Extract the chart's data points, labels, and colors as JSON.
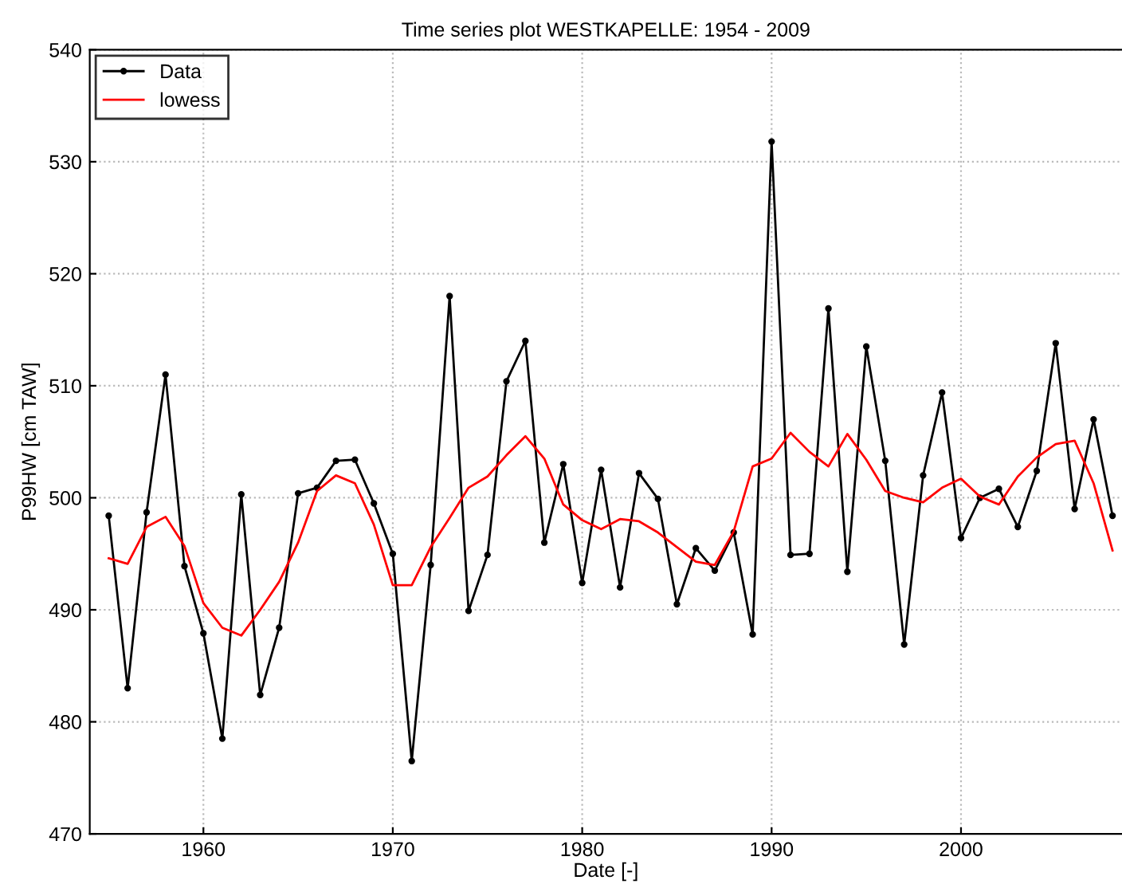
{
  "chart_data": {
    "type": "line",
    "title": "Time series plot WESTKAPELLE: 1954 - 2009",
    "xlabel": "Date [-]",
    "ylabel": "P99HW [cm TAW]",
    "x": [
      1955,
      1956,
      1957,
      1958,
      1959,
      1960,
      1961,
      1962,
      1963,
      1964,
      1965,
      1966,
      1967,
      1968,
      1969,
      1970,
      1971,
      1972,
      1973,
      1974,
      1975,
      1976,
      1977,
      1978,
      1979,
      1980,
      1981,
      1982,
      1983,
      1984,
      1985,
      1986,
      1987,
      1988,
      1989,
      1990,
      1991,
      1992,
      1993,
      1994,
      1995,
      1996,
      1997,
      1998,
      1999,
      2000,
      2001,
      2002,
      2003,
      2004,
      2005,
      2006,
      2007,
      2008
    ],
    "series": [
      {
        "name": "Data",
        "color": "#000000",
        "marker": "circle",
        "values": [
          498.4,
          483.0,
          498.7,
          511.0,
          493.9,
          487.9,
          478.5,
          500.3,
          482.4,
          488.4,
          500.4,
          500.9,
          503.3,
          503.4,
          499.5,
          495.0,
          476.5,
          494.0,
          518.0,
          489.9,
          494.9,
          510.4,
          514.0,
          496.0,
          503.0,
          492.4,
          502.5,
          492.0,
          502.2,
          499.9,
          490.5,
          495.5,
          493.5,
          496.9,
          487.8,
          531.8,
          494.9,
          495.0,
          516.9,
          493.4,
          513.5,
          503.3,
          486.9,
          502.0,
          509.4,
          496.4,
          500.0,
          500.8,
          497.4,
          502.4,
          513.8,
          499.0,
          507.0,
          498.4
        ]
      },
      {
        "name": "lowess",
        "color": "#ff0000",
        "marker": "none",
        "values": [
          494.6,
          494.1,
          497.4,
          498.3,
          495.7,
          490.6,
          488.4,
          487.7,
          490.0,
          492.5,
          496.0,
          500.6,
          502.0,
          501.3,
          497.6,
          492.2,
          492.2,
          495.6,
          498.2,
          500.9,
          501.9,
          503.8,
          505.5,
          503.5,
          499.4,
          498.0,
          497.2,
          498.1,
          497.9,
          496.9,
          495.6,
          494.3,
          494.0,
          497.0,
          502.8,
          503.5,
          505.8,
          504.1,
          502.8,
          505.7,
          503.4,
          500.6,
          500.0,
          499.6,
          500.9,
          501.7,
          500.1,
          499.4,
          501.9,
          503.6,
          504.8,
          505.1,
          501.3,
          495.3
        ]
      }
    ],
    "xlim": [
      1954,
      2008.5
    ],
    "xticks": [
      1960,
      1970,
      1980,
      1990,
      2000
    ],
    "ylim": [
      470,
      540
    ],
    "yticks": [
      470,
      480,
      490,
      500,
      510,
      520,
      530,
      540
    ],
    "grid": true,
    "legend": "top left",
    "line_style": "solid"
  }
}
